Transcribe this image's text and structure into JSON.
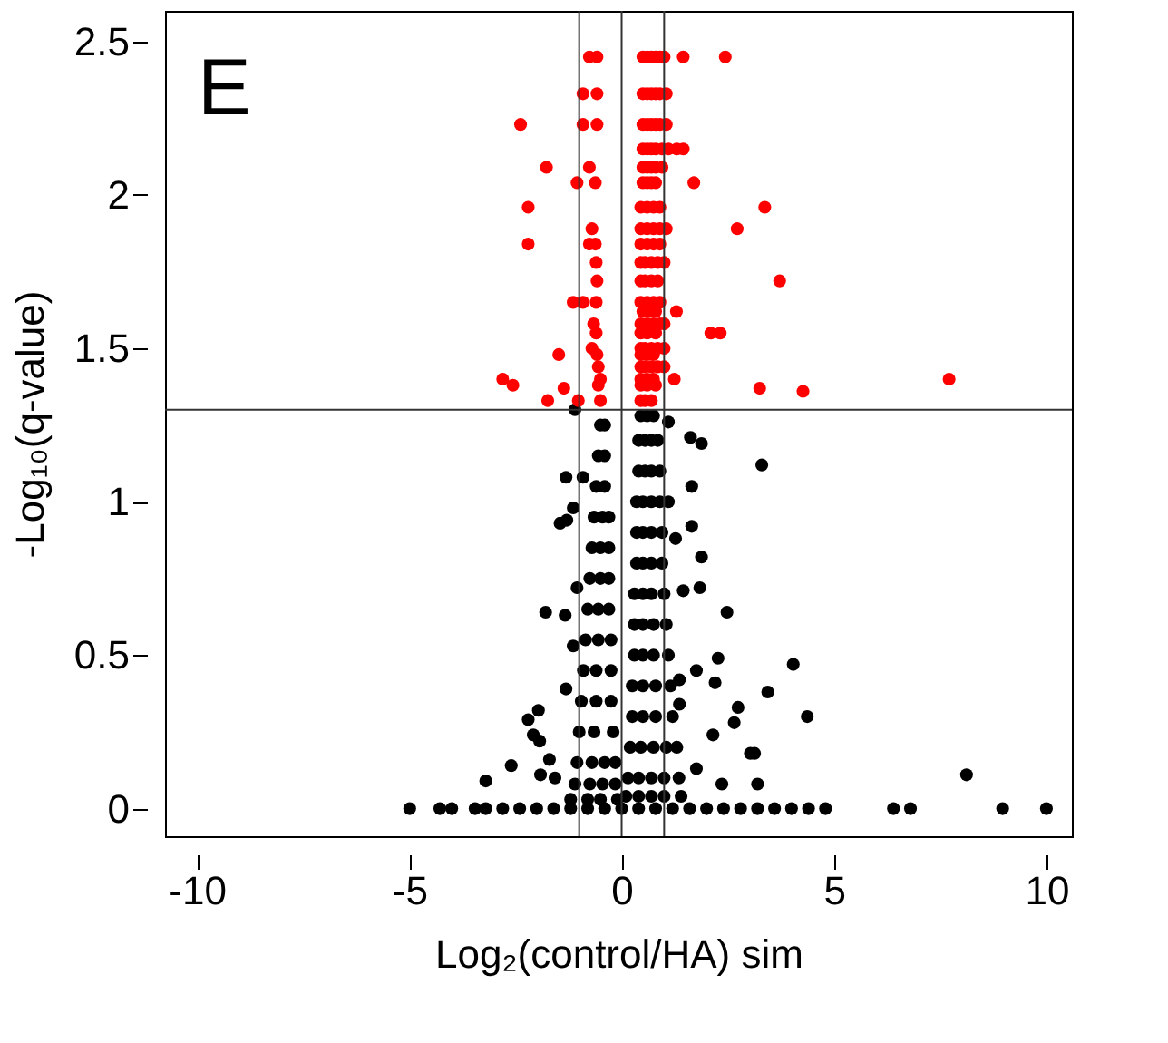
{
  "chart_data": {
    "type": "scatter",
    "xlabel": "Log₂(control/HA) sim",
    "ylabel": "-Log₁₀(q-value)",
    "annotations": [
      "E"
    ],
    "xlim": [
      -10.75,
      10.6
    ],
    "ylim": [
      -0.09,
      2.6
    ],
    "xticks": [
      -10,
      -5,
      0,
      5,
      10
    ],
    "yticks": [
      {
        "value": 0,
        "label": "0"
      },
      0.5,
      {
        "value": 1,
        "label": "1"
      },
      1.5,
      {
        "value": 2,
        "label": "2"
      },
      2.5
    ],
    "grid": false,
    "legend": false,
    "marker": "circle",
    "ref_lines": [
      {
        "axis": "x",
        "value": -1,
        "color": "#333333"
      },
      {
        "axis": "x",
        "value": 0,
        "color": "#333333"
      },
      {
        "axis": "x",
        "value": 1,
        "color": "#333333"
      },
      {
        "axis": "y",
        "value": 1.3,
        "color": "#333333"
      }
    ],
    "series": [
      {
        "color": "#000000",
        "x": [
          -1.1,
          1.1,
          1.62,
          1.88,
          3.3,
          -1.31,
          -0.91,
          1.65,
          1.1,
          -1.14,
          -1.45,
          -1.29,
          1.65,
          1.27,
          1.88,
          -1.05,
          1.45,
          1.84,
          -1.79,
          -1.33,
          2.48,
          -1.14,
          2.27,
          4.04,
          1.76,
          1.36,
          2.2,
          -1.31,
          3.44,
          4.37,
          -1.96,
          -2.2,
          2.74,
          1.36,
          2.65,
          -2.08,
          -1.93,
          2.15,
          3.03,
          3.13,
          -2.6,
          -1.7,
          -3.2,
          8.12,
          3.2,
          -1.91,
          -1.57,
          1.76,
          2.36,
          -0.5,
          -0.4,
          -0.55,
          -0.4,
          -0.6,
          -0.4,
          -0.65,
          -0.45,
          -0.3,
          -0.7,
          -0.5,
          -0.3,
          -0.75,
          -0.5,
          -0.3,
          -0.8,
          -0.55,
          -0.3,
          -0.85,
          -0.55,
          -0.25,
          -0.9,
          -0.6,
          -0.25,
          -0.95,
          -0.6,
          -0.25,
          -1.0,
          -0.65,
          -0.2,
          -1.05,
          -0.7,
          -0.4,
          -0.15,
          -1.1,
          -0.75,
          -0.45,
          -0.15,
          -1.2,
          -0.8,
          -0.5,
          -0.1,
          0.45,
          0.6,
          0.75,
          0.4,
          0.55,
          0.7,
          0.85,
          0.4,
          0.55,
          0.7,
          0.9,
          0.35,
          0.5,
          0.7,
          0.9,
          0.35,
          0.5,
          0.7,
          0.95,
          0.35,
          0.5,
          0.7,
          0.95,
          0.3,
          0.5,
          0.7,
          1.0,
          0.3,
          0.5,
          0.75,
          1.05,
          0.3,
          0.5,
          0.75,
          1.1,
          0.25,
          0.5,
          0.8,
          1.15,
          0.25,
          0.5,
          0.8,
          1.2,
          0.2,
          0.45,
          0.75,
          1.05,
          1.3,
          0.15,
          0.4,
          0.7,
          1.0,
          1.35,
          0.1,
          0.4,
          0.7,
          1.0,
          1.4,
          -4.99,
          -4.28,
          -4.0,
          -3.45,
          -3.2,
          -2.8,
          -2.4,
          -2.0,
          -1.6,
          -1.2,
          -0.8,
          -0.4,
          0.0,
          0.4,
          0.8,
          1.2,
          1.6,
          2.0,
          2.4,
          2.8,
          3.2,
          3.6,
          4.0,
          4.4,
          4.8,
          6.4,
          6.8,
          8.97,
          10.0
        ],
        "values": [
          1.3,
          1.26,
          1.21,
          1.19,
          1.12,
          1.08,
          1.08,
          1.05,
          1.0,
          0.98,
          0.93,
          0.94,
          0.92,
          0.88,
          0.82,
          0.72,
          0.71,
          0.72,
          0.64,
          0.63,
          0.64,
          0.53,
          0.49,
          0.47,
          0.45,
          0.42,
          0.41,
          0.39,
          0.38,
          0.3,
          0.32,
          0.29,
          0.33,
          0.34,
          0.28,
          0.24,
          0.22,
          0.24,
          0.18,
          0.18,
          0.14,
          0.16,
          0.09,
          0.11,
          0.08,
          0.11,
          0.1,
          0.13,
          0.08,
          1.25,
          1.25,
          1.15,
          1.15,
          1.05,
          1.05,
          0.95,
          0.95,
          0.95,
          0.85,
          0.85,
          0.85,
          0.75,
          0.75,
          0.75,
          0.65,
          0.65,
          0.65,
          0.55,
          0.55,
          0.55,
          0.45,
          0.45,
          0.45,
          0.35,
          0.35,
          0.35,
          0.25,
          0.25,
          0.25,
          0.15,
          0.15,
          0.15,
          0.15,
          0.08,
          0.08,
          0.08,
          0.08,
          0.03,
          0.03,
          0.03,
          0.03,
          1.28,
          1.28,
          1.28,
          1.2,
          1.2,
          1.2,
          1.2,
          1.1,
          1.1,
          1.1,
          1.1,
          1.0,
          1.0,
          1.0,
          1.0,
          0.9,
          0.9,
          0.9,
          0.9,
          0.8,
          0.8,
          0.8,
          0.8,
          0.7,
          0.7,
          0.7,
          0.7,
          0.6,
          0.6,
          0.6,
          0.6,
          0.5,
          0.5,
          0.5,
          0.5,
          0.4,
          0.4,
          0.4,
          0.4,
          0.3,
          0.3,
          0.3,
          0.3,
          0.2,
          0.2,
          0.2,
          0.2,
          0.2,
          0.1,
          0.1,
          0.1,
          0.1,
          0.1,
          0.04,
          0.04,
          0.04,
          0.04,
          0.04,
          0,
          0,
          0,
          0,
          0,
          0,
          0,
          0,
          0,
          0,
          0,
          0,
          0,
          0,
          0,
          0,
          0,
          0,
          0,
          0,
          0,
          0,
          0,
          0,
          0,
          0,
          0,
          0,
          0
        ]
      },
      {
        "color": "#ff0000",
        "x": [
          -0.76,
          -0.58,
          0.5,
          0.6,
          0.7,
          0.8,
          0.9,
          1.0,
          1.45,
          2.44,
          -0.91,
          -0.58,
          0.5,
          0.6,
          0.7,
          0.8,
          0.9,
          1.05,
          -2.38,
          -0.91,
          -0.58,
          0.5,
          0.6,
          0.7,
          0.8,
          0.9,
          1.05,
          0.5,
          0.6,
          0.7,
          0.8,
          0.95,
          1.1,
          1.3,
          1.45,
          -1.77,
          -0.76,
          0.5,
          0.6,
          0.7,
          0.8,
          0.95,
          -1.05,
          -0.62,
          0.5,
          0.6,
          0.7,
          0.8,
          1.7,
          -2.2,
          0.45,
          0.6,
          0.75,
          0.9,
          3.37,
          -0.7,
          0.45,
          0.6,
          0.75,
          0.9,
          1.05,
          2.72,
          -2.2,
          -0.76,
          -0.62,
          0.45,
          0.6,
          0.75,
          0.9,
          -0.6,
          0.45,
          0.55,
          0.7,
          0.85,
          1.0,
          -0.58,
          0.45,
          0.55,
          0.7,
          0.85,
          3.72,
          -1.14,
          -0.91,
          -0.6,
          0.45,
          0.6,
          0.75,
          0.9,
          0.5,
          0.65,
          0.8,
          1.29,
          -0.66,
          0.45,
          0.6,
          0.75,
          0.9,
          1.0,
          -0.6,
          0.45,
          0.6,
          0.8,
          2.1,
          2.32,
          -0.7,
          0.45,
          0.55,
          0.7,
          0.85,
          1.0,
          -1.48,
          -0.58,
          0.45,
          0.6,
          0.75,
          -0.55,
          0.45,
          0.55,
          0.7,
          0.85,
          1.0,
          -2.8,
          -0.5,
          0.45,
          0.6,
          0.75,
          1.24,
          7.71,
          -2.56,
          -0.55,
          0.45,
          0.6,
          0.8,
          -1.36,
          3.25,
          4.27,
          -1.74,
          -1.02,
          -0.5,
          0.45,
          0.55,
          0.7
        ],
        "values": [
          2.45,
          2.45,
          2.45,
          2.45,
          2.45,
          2.45,
          2.45,
          2.45,
          2.45,
          2.45,
          2.33,
          2.33,
          2.33,
          2.33,
          2.33,
          2.33,
          2.33,
          2.33,
          2.23,
          2.23,
          2.23,
          2.23,
          2.23,
          2.23,
          2.23,
          2.23,
          2.23,
          2.15,
          2.15,
          2.15,
          2.15,
          2.15,
          2.15,
          2.15,
          2.15,
          2.09,
          2.09,
          2.09,
          2.09,
          2.09,
          2.09,
          2.09,
          2.04,
          2.04,
          2.04,
          2.04,
          2.04,
          2.04,
          2.04,
          1.96,
          1.96,
          1.96,
          1.96,
          1.96,
          1.96,
          1.89,
          1.89,
          1.89,
          1.89,
          1.89,
          1.89,
          1.89,
          1.84,
          1.84,
          1.84,
          1.84,
          1.84,
          1.84,
          1.84,
          1.78,
          1.78,
          1.78,
          1.78,
          1.78,
          1.78,
          1.72,
          1.72,
          1.72,
          1.72,
          1.72,
          1.72,
          1.65,
          1.65,
          1.65,
          1.65,
          1.65,
          1.65,
          1.65,
          1.62,
          1.62,
          1.62,
          1.62,
          1.58,
          1.58,
          1.58,
          1.58,
          1.58,
          1.58,
          1.55,
          1.55,
          1.55,
          1.55,
          1.55,
          1.55,
          1.5,
          1.5,
          1.5,
          1.5,
          1.5,
          1.5,
          1.48,
          1.48,
          1.48,
          1.48,
          1.48,
          1.44,
          1.44,
          1.44,
          1.44,
          1.44,
          1.44,
          1.4,
          1.4,
          1.4,
          1.4,
          1.4,
          1.4,
          1.4,
          1.38,
          1.38,
          1.38,
          1.38,
          1.38,
          1.37,
          1.37,
          1.36,
          1.33,
          1.33,
          1.33,
          1.33,
          1.33,
          1.33
        ]
      }
    ]
  }
}
